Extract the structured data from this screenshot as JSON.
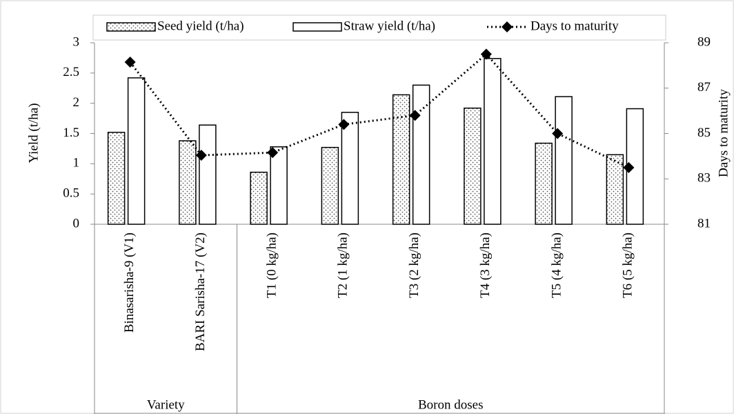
{
  "chart_data": {
    "type": "bar",
    "categories": [
      "Binasarisha-9 (V1)",
      "BARI Sarisha-17 (V2)",
      "T1 (0 kg/ha)",
      "T2 (1 kg/ha)",
      "T3 (2 kg/ha)",
      "T4 (3 kg/ha)",
      "T5 (4 kg/ha)",
      "T6 (5 kg/ha)"
    ],
    "groups": [
      "Variety",
      "Boron doses"
    ],
    "series": [
      {
        "name": "Seed yield (t/ha)",
        "type": "bar",
        "color": "#000000",
        "pattern": "dots",
        "values": [
          1.52,
          1.38,
          0.86,
          1.27,
          2.14,
          1.92,
          1.34,
          1.15
        ]
      },
      {
        "name": "Straw yield (t/ha)",
        "type": "bar",
        "color": "#000000",
        "pattern": "none",
        "values": [
          2.42,
          1.64,
          1.28,
          1.85,
          2.3,
          2.74,
          2.11,
          1.91
        ]
      },
      {
        "name": "Days to maturity",
        "type": "line",
        "axis": "y2",
        "color": "#000000",
        "values": [
          88.15,
          84.04,
          84.16,
          85.4,
          85.8,
          88.5,
          85.0,
          83.5
        ]
      }
    ],
    "ylabel": "Yield (t/ha)",
    "y2label": "Days to maturity",
    "ylim": [
      0,
      3
    ],
    "yticks": [
      0,
      0.5,
      1,
      1.5,
      2,
      2.5,
      3
    ],
    "y2lim": [
      81,
      89
    ],
    "y2ticks": [
      81,
      83,
      85,
      87,
      89
    ],
    "legend": "top"
  }
}
